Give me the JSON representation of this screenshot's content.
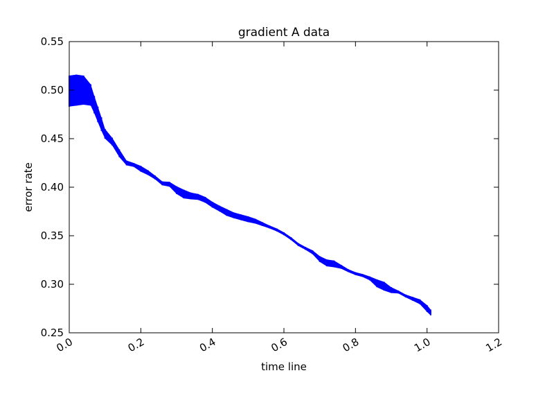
{
  "chart_data": {
    "type": "line",
    "title": "gradient A data",
    "xlabel": "time line",
    "ylabel": "error rate",
    "xlim": [
      0.0,
      1.2
    ],
    "ylim": [
      0.25,
      0.55
    ],
    "xticks": [
      "0.0",
      "0.2",
      "0.4",
      "0.6",
      "0.8",
      "1.0",
      "1.2"
    ],
    "yticks": [
      "0.25",
      "0.30",
      "0.35",
      "0.40",
      "0.45",
      "0.50",
      "0.55"
    ],
    "grid": false,
    "line_color": "#0000ff",
    "series": [
      {
        "x": [
          0.0,
          0.02,
          0.04,
          0.06,
          0.07,
          0.08,
          0.09,
          0.1,
          0.12,
          0.14,
          0.16,
          0.18,
          0.2,
          0.22,
          0.24,
          0.26,
          0.28,
          0.3,
          0.32,
          0.34,
          0.36,
          0.38,
          0.4,
          0.42,
          0.44,
          0.46,
          0.48,
          0.5,
          0.52,
          0.54,
          0.56,
          0.58,
          0.6,
          0.62,
          0.64,
          0.66,
          0.68,
          0.7,
          0.72,
          0.74,
          0.76,
          0.78,
          0.8,
          0.82,
          0.84,
          0.86,
          0.88,
          0.9,
          0.92,
          0.94,
          0.96,
          0.98,
          1.0,
          1.01
        ],
        "y": [
          0.499,
          0.5,
          0.5,
          0.495,
          0.485,
          0.475,
          0.465,
          0.455,
          0.447,
          0.435,
          0.425,
          0.423,
          0.419,
          0.415,
          0.41,
          0.404,
          0.403,
          0.397,
          0.393,
          0.391,
          0.39,
          0.387,
          0.382,
          0.378,
          0.374,
          0.371,
          0.369,
          0.367,
          0.365,
          0.362,
          0.359,
          0.356,
          0.352,
          0.347,
          0.341,
          0.337,
          0.333,
          0.326,
          0.322,
          0.321,
          0.318,
          0.314,
          0.311,
          0.309,
          0.306,
          0.301,
          0.298,
          0.294,
          0.292,
          0.288,
          0.285,
          0.282,
          0.275,
          0.271
        ],
        "band": [
          0.032,
          0.032,
          0.03,
          0.022,
          0.018,
          0.016,
          0.014,
          0.01,
          0.008,
          0.008,
          0.005,
          0.004,
          0.006,
          0.005,
          0.004,
          0.004,
          0.005,
          0.008,
          0.009,
          0.007,
          0.006,
          0.006,
          0.006,
          0.006,
          0.007,
          0.006,
          0.006,
          0.006,
          0.005,
          0.004,
          0.003,
          0.003,
          0.003,
          0.003,
          0.003,
          0.003,
          0.004,
          0.006,
          0.007,
          0.007,
          0.004,
          0.003,
          0.003,
          0.003,
          0.004,
          0.008,
          0.009,
          0.006,
          0.003,
          0.003,
          0.004,
          0.005,
          0.007,
          0.006
        ]
      }
    ]
  }
}
